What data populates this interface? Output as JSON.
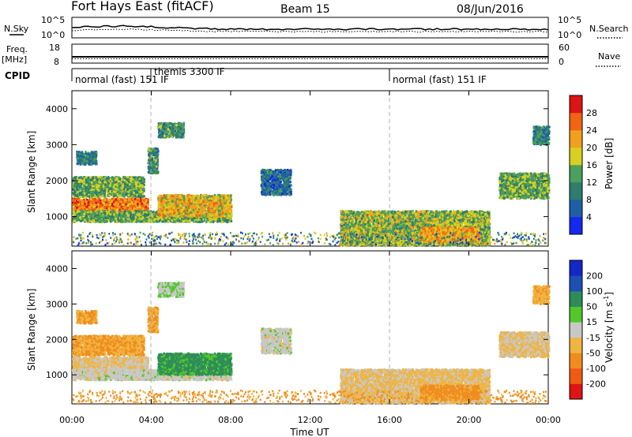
{
  "header": {
    "radar": "Fort Hays East (fitACF)",
    "beam": "Beam 15",
    "date": "08/Jun/2016"
  },
  "noise_panel": {
    "left_label": "N.Sky",
    "right_label": "N.Search",
    "ticks_left": [
      "10^5",
      "10^0"
    ],
    "ticks_right": [
      "10^5",
      "10^0"
    ]
  },
  "freq_panel": {
    "left_label_line1": "Freq.",
    "left_label_line2": "[MHz]",
    "right_label": "Nave",
    "ticks_left": [
      "18",
      "8"
    ],
    "ticks_right": [
      "60",
      "0"
    ]
  },
  "cpid_panel": {
    "label": "CPID",
    "segments": [
      {
        "text": "normal (fast) 151 IF"
      },
      {
        "text": "themis 3300 IF"
      },
      {
        "text": "normal (fast) 151 IF"
      }
    ],
    "boundaries_hours": [
      4.0,
      16.0
    ]
  },
  "time_axis": {
    "label": "Time UT",
    "ticks": [
      "00:00",
      "04:00",
      "08:00",
      "12:00",
      "16:00",
      "20:00",
      "00:00"
    ],
    "tick_hours": [
      0,
      4,
      8,
      12,
      16,
      20,
      24
    ]
  },
  "range_axis": {
    "label": "Slant Range [km]",
    "ticks": [
      "1000",
      "2000",
      "3000",
      "4000"
    ],
    "tick_km": [
      1000,
      2000,
      3000,
      4000
    ],
    "range_km": [
      180,
      4500
    ]
  },
  "power_colorbar": {
    "label": "Power [dB]",
    "ticks": [
      "4",
      "8",
      "12",
      "16",
      "20",
      "24",
      "28"
    ],
    "levels": [
      0,
      4,
      8,
      12,
      16,
      20,
      24,
      28,
      30
    ],
    "colors": [
      "#1428f0",
      "#1e5fa8",
      "#2e7d6e",
      "#4aa05c",
      "#d8d020",
      "#f0a01e",
      "#f06414",
      "#dc1414"
    ]
  },
  "velocity_colorbar": {
    "label": "Velocity [m s",
    "label_superscript": "-1",
    "label_end": "]",
    "ticks": [
      "200",
      "100",
      "50",
      "15",
      "-15",
      "-50",
      "-100",
      "-200"
    ],
    "colors": [
      "#e01414",
      "#f05a14",
      "#f08c1e",
      "#f0b440",
      "#c8c8c8",
      "#50c828",
      "#2e8c5a",
      "#1e50b4",
      "#1428c8"
    ]
  },
  "chart_data": {
    "type": "heatmap",
    "title": "Fort Hays East (fitACF) Beam 15 08/Jun/2016",
    "xlabel": "Time UT",
    "ylabel": "Slant Range [km]",
    "x_range_hours": [
      0,
      24
    ],
    "y_range_km": [
      180,
      4500
    ],
    "panels": [
      "Power [dB]",
      "Velocity [m s-1]"
    ],
    "scatter_regions": [
      {
        "t0": 0.0,
        "t1": 3.8,
        "r0": 1100,
        "r1": 1500,
        "power_db": 24,
        "velocity": -15
      },
      {
        "t0": 0.0,
        "t1": 3.6,
        "r0": 1550,
        "r1": 2100,
        "power_db": 14,
        "velocity": -50
      },
      {
        "t0": 0.2,
        "t1": 1.2,
        "r0": 2450,
        "r1": 2800,
        "power_db": 10,
        "velocity": -50
      },
      {
        "t0": 3.8,
        "t1": 4.3,
        "r0": 2200,
        "r1": 2900,
        "power_db": 12,
        "velocity": -50
      },
      {
        "t0": 0.0,
        "t1": 8.0,
        "r0": 850,
        "r1": 1150,
        "power_db": 14,
        "velocity": 0
      },
      {
        "t0": 4.3,
        "t1": 8.0,
        "r0": 1000,
        "r1": 1600,
        "power_db": 20,
        "velocity": 60
      },
      {
        "t0": 4.3,
        "t1": 5.6,
        "r0": 3200,
        "r1": 3600,
        "power_db": 12,
        "velocity": 10
      },
      {
        "t0": 9.5,
        "t1": 11.0,
        "r0": 1600,
        "r1": 2300,
        "power_db": 8,
        "velocity": 0
      },
      {
        "t0": 13.5,
        "t1": 21.0,
        "r0": 200,
        "r1": 1150,
        "power_db": 16,
        "velocity": -20
      },
      {
        "t0": 17.5,
        "t1": 20.5,
        "r0": 300,
        "r1": 700,
        "power_db": 22,
        "velocity": -60
      },
      {
        "t0": 21.5,
        "t1": 24.0,
        "r0": 1500,
        "r1": 2200,
        "power_db": 14,
        "velocity": -15
      },
      {
        "t0": 23.2,
        "t1": 24.0,
        "r0": 3000,
        "r1": 3500,
        "power_db": 10,
        "velocity": -40
      }
    ]
  }
}
